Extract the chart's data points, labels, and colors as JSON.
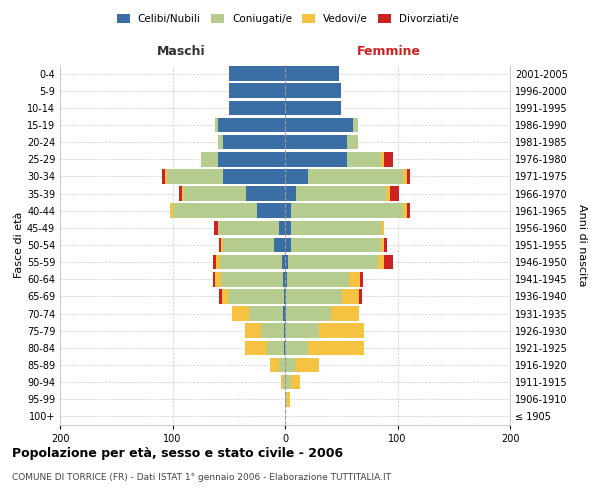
{
  "age_groups": [
    "100+",
    "95-99",
    "90-94",
    "85-89",
    "80-84",
    "75-79",
    "70-74",
    "65-69",
    "60-64",
    "55-59",
    "50-54",
    "45-49",
    "40-44",
    "35-39",
    "30-34",
    "25-29",
    "20-24",
    "15-19",
    "10-14",
    "5-9",
    "0-4"
  ],
  "birth_years": [
    "≤ 1905",
    "1906-1910",
    "1911-1915",
    "1916-1920",
    "1921-1925",
    "1926-1930",
    "1931-1935",
    "1936-1940",
    "1941-1945",
    "1946-1950",
    "1951-1955",
    "1956-1960",
    "1961-1965",
    "1966-1970",
    "1971-1975",
    "1976-1980",
    "1981-1985",
    "1986-1990",
    "1991-1995",
    "1996-2000",
    "2001-2005"
  ],
  "colors": {
    "celibe": "#3a6ea5",
    "coniugato": "#b5cc8e",
    "vedovo": "#f5c242",
    "divorziato": "#cc2222"
  },
  "male": {
    "celibe": [
      0,
      0,
      0,
      0,
      1,
      1,
      2,
      1,
      2,
      3,
      10,
      5,
      25,
      35,
      55,
      60,
      55,
      60,
      50,
      50,
      50
    ],
    "coniugato": [
      0,
      0,
      2,
      5,
      15,
      20,
      30,
      50,
      55,
      55,
      45,
      55,
      75,
      55,
      50,
      15,
      5,
      2,
      0,
      0,
      0
    ],
    "vedovo": [
      0,
      0,
      2,
      8,
      20,
      15,
      15,
      5,
      5,
      3,
      2,
      0,
      2,
      2,
      2,
      0,
      0,
      0,
      0,
      0,
      0
    ],
    "divorziato": [
      0,
      0,
      0,
      0,
      0,
      0,
      0,
      3,
      2,
      3,
      2,
      3,
      0,
      2,
      2,
      0,
      0,
      0,
      0,
      0,
      0
    ]
  },
  "female": {
    "nubile": [
      0,
      0,
      0,
      0,
      0,
      0,
      1,
      1,
      2,
      3,
      5,
      5,
      5,
      10,
      20,
      55,
      55,
      60,
      50,
      50,
      48
    ],
    "coniugata": [
      0,
      2,
      5,
      10,
      20,
      30,
      40,
      50,
      55,
      80,
      80,
      80,
      100,
      80,
      85,
      30,
      10,
      5,
      0,
      0,
      0
    ],
    "vedova": [
      0,
      2,
      8,
      20,
      50,
      40,
      25,
      15,
      10,
      5,
      3,
      3,
      3,
      3,
      3,
      3,
      0,
      0,
      0,
      0,
      0
    ],
    "divorziata": [
      0,
      0,
      0,
      0,
      0,
      0,
      0,
      2,
      2,
      8,
      3,
      0,
      3,
      8,
      3,
      8,
      0,
      0,
      0,
      0,
      0
    ]
  },
  "title": "Popolazione per età, sesso e stato civile - 2006",
  "subtitle": "COMUNE DI TORRICE (FR) - Dati ISTAT 1° gennaio 2006 - Elaborazione TUTTITALIA.IT",
  "xlabel_left": "Maschi",
  "xlabel_right": "Femmine",
  "ylabel_left": "Fasce di età",
  "ylabel_right": "Anni di nascita",
  "xlim": 200,
  "legend_labels": [
    "Celibi/Nubili",
    "Coniugati/e",
    "Vedovi/e",
    "Divorziati/e"
  ],
  "background_color": "#ffffff",
  "grid_color": "#cccccc"
}
